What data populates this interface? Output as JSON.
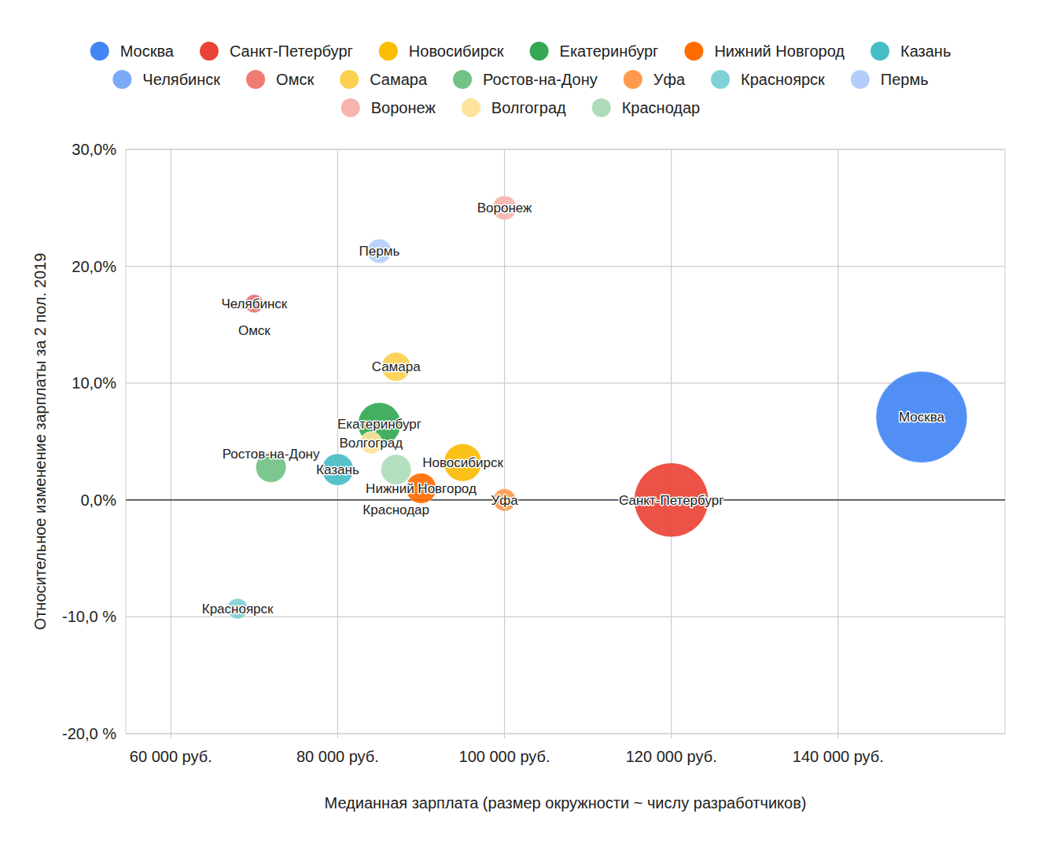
{
  "chart_data": {
    "type": "bubble",
    "x_label": "Медианная зарплата (размер окружности ~ числу разработчиков)",
    "y_label": "Относительное изменение зарплаты за 2 пол. 2019",
    "xlim": [
      54600,
      160000
    ],
    "ylim": [
      -20,
      30
    ],
    "xticks": [
      {
        "value": 60000,
        "label": "60 000 руб."
      },
      {
        "value": 80000,
        "label": "80 000 руб."
      },
      {
        "value": 100000,
        "label": "100 000 руб."
      },
      {
        "value": 120000,
        "label": "120 000 руб."
      },
      {
        "value": 140000,
        "label": "140 000 руб."
      }
    ],
    "yticks": [
      {
        "value": -20,
        "label": "-20,0 %"
      },
      {
        "value": -10,
        "label": "-10,0 %"
      },
      {
        "value": 0,
        "label": "0,0%"
      },
      {
        "value": 10,
        "label": "10,0%"
      },
      {
        "value": 20,
        "label": "20,0%"
      },
      {
        "value": 30,
        "label": "30,0%"
      }
    ],
    "grid": true,
    "legend": "top",
    "series": [
      {
        "name": "Москва",
        "color": "#4285f4",
        "x": [
          150000
        ],
        "values": [
          7.1
        ],
        "sizes": [
          100
        ]
      },
      {
        "name": "Санкт-Петербург",
        "color": "#ea4335",
        "x": [
          120000
        ],
        "values": [
          0
        ],
        "sizes": [
          66
        ]
      },
      {
        "name": "Новосибирск",
        "color": "#fbbc04",
        "x": [
          95000
        ],
        "values": [
          3.2
        ],
        "sizes": [
          17
        ]
      },
      {
        "name": "Екатеринбург",
        "color": "#34a853",
        "x": [
          85000
        ],
        "values": [
          6.5
        ],
        "sizes": [
          22
        ]
      },
      {
        "name": "Нижний Новгород",
        "color": "#ff6d01",
        "x": [
          90000
        ],
        "values": [
          1.0
        ],
        "sizes": [
          11
        ]
      },
      {
        "name": "Казань",
        "color": "#46bdc6",
        "x": [
          80000
        ],
        "values": [
          2.6
        ],
        "sizes": [
          12
        ]
      },
      {
        "name": "Челябинск",
        "color": "#7baaf7",
        "x": [
          70000
        ],
        "values": [
          16.8
        ],
        "sizes": [
          4
        ]
      },
      {
        "name": "Омск",
        "color": "#f07b72",
        "x": [
          70000
        ],
        "values": [
          16.8
        ],
        "sizes": [
          4
        ]
      },
      {
        "name": "Самара",
        "color": "#fcd04f",
        "x": [
          87000
        ],
        "values": [
          11.4
        ],
        "sizes": [
          10
        ]
      },
      {
        "name": "Ростов-на-Дону",
        "color": "#71c287",
        "x": [
          72000
        ],
        "values": [
          2.8
        ],
        "sizes": [
          11
        ]
      },
      {
        "name": "Уфа",
        "color": "#ff994d",
        "x": [
          100000
        ],
        "values": [
          0
        ],
        "sizes": [
          6
        ]
      },
      {
        "name": "Красноярск",
        "color": "#7ed1d7",
        "x": [
          68000
        ],
        "values": [
          -9.3
        ],
        "sizes": [
          5
        ]
      },
      {
        "name": "Пермь",
        "color": "#b3cefb",
        "x": [
          85000
        ],
        "values": [
          21.3
        ],
        "sizes": [
          7
        ]
      },
      {
        "name": "Воронеж",
        "color": "#f7b4ae",
        "x": [
          100000
        ],
        "values": [
          25.0
        ],
        "sizes": [
          7
        ]
      },
      {
        "name": "Волгоград",
        "color": "#fde49b",
        "x": [
          84000
        ],
        "values": [
          4.9
        ],
        "sizes": [
          6
        ]
      },
      {
        "name": "Краснодар",
        "color": "#aedcba",
        "x": [
          87000
        ],
        "values": [
          2.6
        ],
        "sizes": [
          11
        ]
      }
    ]
  }
}
